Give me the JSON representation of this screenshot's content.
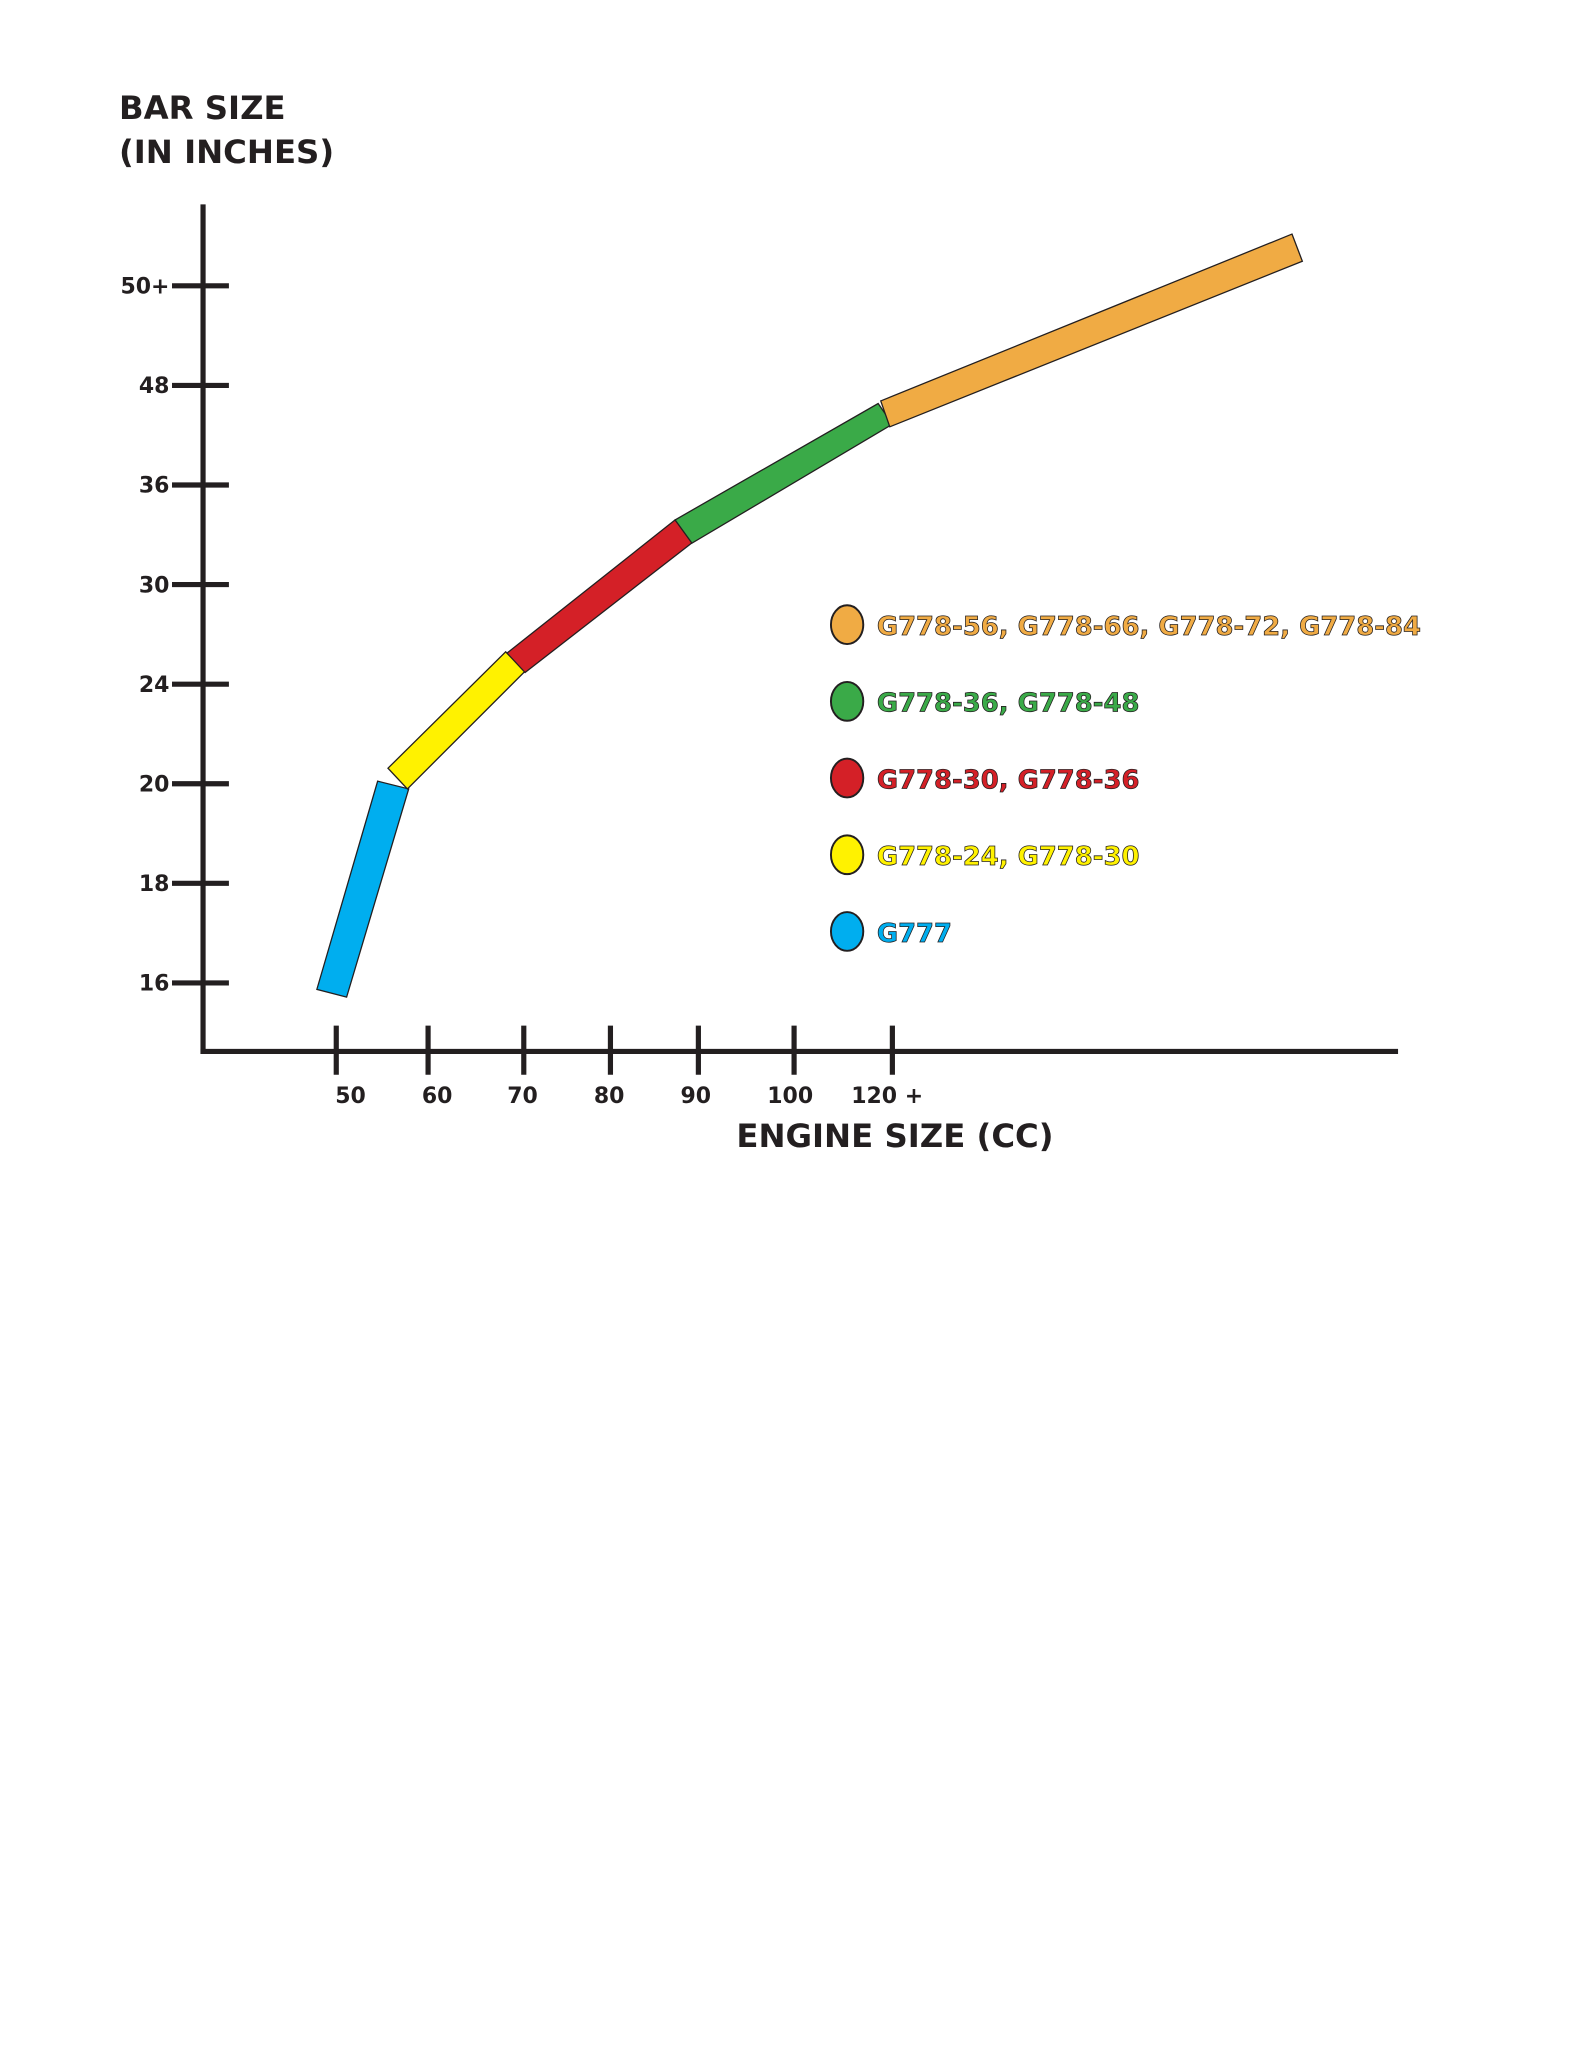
{
  "y_axis": {
    "title_line1": "BAR SIZE",
    "title_line2": "(IN INCHES)",
    "tick_labels": [
      "50+",
      "48",
      "36",
      "30",
      "24",
      "20",
      "18",
      "16"
    ]
  },
  "x_axis": {
    "title": "ENGINE SIZE (CC)",
    "tick_labels": [
      "50",
      "60",
      "70",
      "80",
      "90",
      "100",
      "120 +"
    ]
  },
  "legend": [
    "G778-56, G778-66, G778-72, G778-84",
    "G778-36, G778-48",
    "G778-30, G778-36",
    "G778-24, G778-30",
    "G777"
  ]
}
